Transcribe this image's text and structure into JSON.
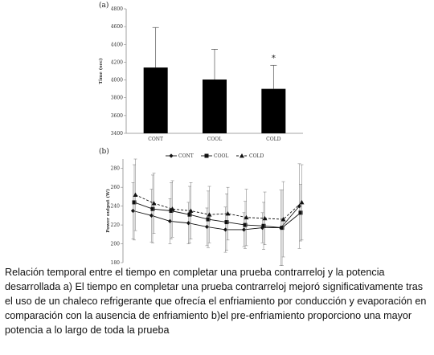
{
  "chart_data": [
    {
      "panel": "(a)",
      "type": "bar",
      "categories": [
        "CONT",
        "COOL",
        "COLD"
      ],
      "values": [
        4140,
        4005,
        3900
      ],
      "errors": [
        450,
        340,
        265
      ],
      "ylabel": "Time (sec)",
      "ylim": [
        3400,
        4800
      ],
      "yticks": [
        3400,
        3600,
        3800,
        4000,
        4200,
        4400,
        4600,
        4800
      ],
      "significance": [
        {
          "category": "COLD",
          "text": "*"
        }
      ],
      "bar_color": "#000000",
      "grid": false
    },
    {
      "panel": "(b)",
      "type": "line",
      "x": [
        1,
        2,
        3,
        4,
        5,
        6,
        7,
        8,
        9,
        10
      ],
      "ylabel": "Power output (W)",
      "ylim": [
        180,
        290
      ],
      "yticks": [
        180,
        200,
        220,
        240,
        260,
        280
      ],
      "legend": "top",
      "grid": false,
      "series": [
        {
          "name": "CONT",
          "marker": "diamond",
          "dash": "solid",
          "values": [
            235,
            230,
            224,
            222,
            218,
            215,
            215,
            217,
            217,
            240
          ],
          "errors": [
            30,
            28,
            24,
            22,
            20,
            24,
            18,
            16,
            40,
            45
          ]
        },
        {
          "name": "COOL",
          "marker": "square",
          "dash": "solid",
          "values": [
            244,
            237,
            235,
            231,
            226,
            223,
            220,
            219,
            217,
            233
          ],
          "errors": [
            40,
            36,
            30,
            30,
            30,
            30,
            25,
            25,
            40,
            30
          ]
        },
        {
          "name": "COLD",
          "marker": "triangle",
          "dash": "dashed",
          "values": [
            252,
            243,
            237,
            235,
            231,
            232,
            228,
            227,
            226,
            244
          ],
          "errors": [
            38,
            32,
            30,
            30,
            30,
            28,
            30,
            28,
            40,
            40
          ]
        }
      ]
    }
  ],
  "caption": "Relación temporal entre el tiempo en completar una prueba contrarreloj y la potencia desarrollada a) El tiempo en completar una prueba contrarreloj mejoró significativamente tras el uso de un chaleco refrigerante que ofrecía el enfriamiento por conducción y evaporación en comparación con la ausencia de enfriamiento b)el pre-enfriamiento proporciono una mayor potencia a lo largo de toda la prueba"
}
